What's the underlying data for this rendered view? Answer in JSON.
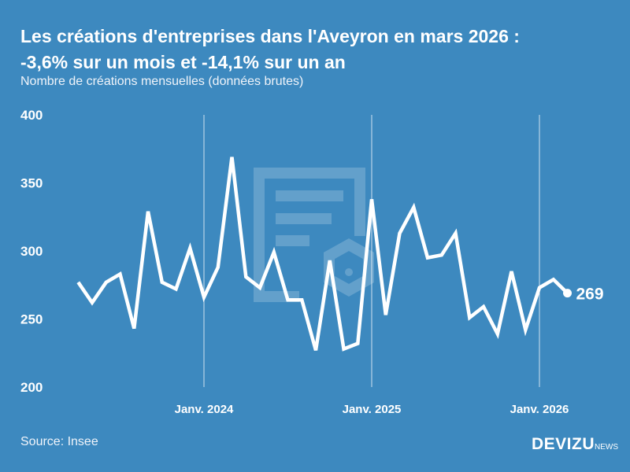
{
  "header": {
    "title_line1": "Les créations d'entreprises dans l'Aveyron en mars 2026 :",
    "title_line2": "-3,6% sur un mois et -14,1% sur un an",
    "subtitle": "Nombre de créations mensuelles (données brutes)"
  },
  "footer": {
    "source": "Source: Insee",
    "logo": "DEVIZU",
    "logo_suffix": "NEWS"
  },
  "colors": {
    "background": "#3d89bf",
    "line": "#ffffff"
  },
  "chart_data": {
    "type": "line",
    "x_start": "2023-04",
    "x_end": "2026-03",
    "x": [
      "2023-04",
      "2023-05",
      "2023-06",
      "2023-07",
      "2023-08",
      "2023-09",
      "2023-10",
      "2023-11",
      "2023-12",
      "2024-01",
      "2024-02",
      "2024-03",
      "2024-04",
      "2024-05",
      "2024-06",
      "2024-07",
      "2024-08",
      "2024-09",
      "2024-10",
      "2024-11",
      "2024-12",
      "2025-01",
      "2025-02",
      "2025-03",
      "2025-04",
      "2025-05",
      "2025-06",
      "2025-07",
      "2025-08",
      "2025-09",
      "2025-10",
      "2025-11",
      "2025-12",
      "2026-01",
      "2026-02",
      "2026-03"
    ],
    "values": [
      277,
      262,
      277,
      283,
      243,
      329,
      277,
      272,
      302,
      266,
      288,
      369,
      281,
      273,
      299,
      264,
      264,
      227,
      293,
      228,
      232,
      338,
      253,
      313,
      332,
      295,
      297,
      313,
      251,
      259,
      239,
      285,
      242,
      273,
      279,
      269
    ],
    "ylim": [
      200,
      400
    ],
    "yticks": [
      "200",
      "250",
      "300",
      "350",
      "400"
    ],
    "xticks": [
      {
        "label": "Janv. 2024",
        "x": "2024-01"
      },
      {
        "label": "Janv. 2025",
        "x": "2025-01"
      },
      {
        "label": "Janv. 2026",
        "x": "2026-01"
      }
    ],
    "last_label": "269",
    "grid": "vertical lines at January"
  }
}
